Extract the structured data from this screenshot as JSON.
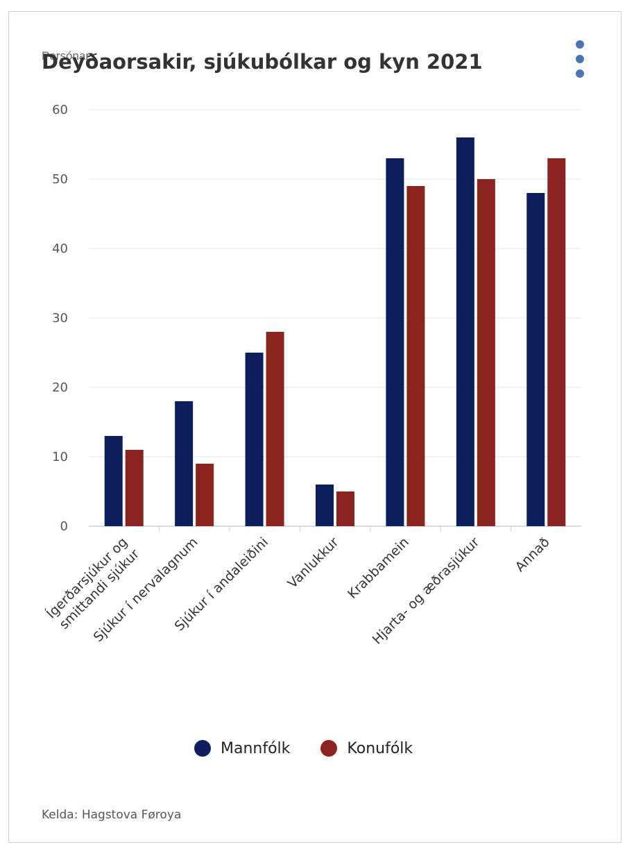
{
  "chart_data": {
    "type": "bar",
    "title": "Deyðaorsakir, sjúkubólkar og kyn 2021",
    "ylabel": "Persónar",
    "ylim": [
      0,
      60
    ],
    "yticks": [
      0,
      10,
      20,
      30,
      40,
      50,
      60
    ],
    "grid": true,
    "legend_position": "bottom",
    "categories": [
      "Ígerðarsjúkur og smittandi sjúkur",
      "Sjúkur í nervalagnum",
      "Sjúkur í andaleiðini",
      "Vanlukkur",
      "Krabbamein",
      "Hjarta- og æðrasjúkur",
      "Annað"
    ],
    "category_label_lines": [
      [
        "Ígerðarsjúkur og",
        "smittandi sjúkur"
      ],
      [
        "Sjúkur í nervalagnum"
      ],
      [
        "Sjúkur í andaleiðini"
      ],
      [
        "Vanlukkur"
      ],
      [
        "Krabbamein"
      ],
      [
        "Hjarta- og æðrasjúkur"
      ],
      [
        "Annað"
      ]
    ],
    "series": [
      {
        "name": "Mannfólk",
        "color": "#0c1f5c",
        "values": [
          13,
          18,
          25,
          6,
          53,
          56,
          48
        ]
      },
      {
        "name": "Konufólk",
        "color": "#8b2321",
        "values": [
          11,
          9,
          28,
          5,
          49,
          50,
          53
        ]
      }
    ],
    "source": "Kelda: Hagstova Føroya"
  },
  "menu": {
    "icon": "more-vertical-icon",
    "color": "#4a74b5"
  }
}
